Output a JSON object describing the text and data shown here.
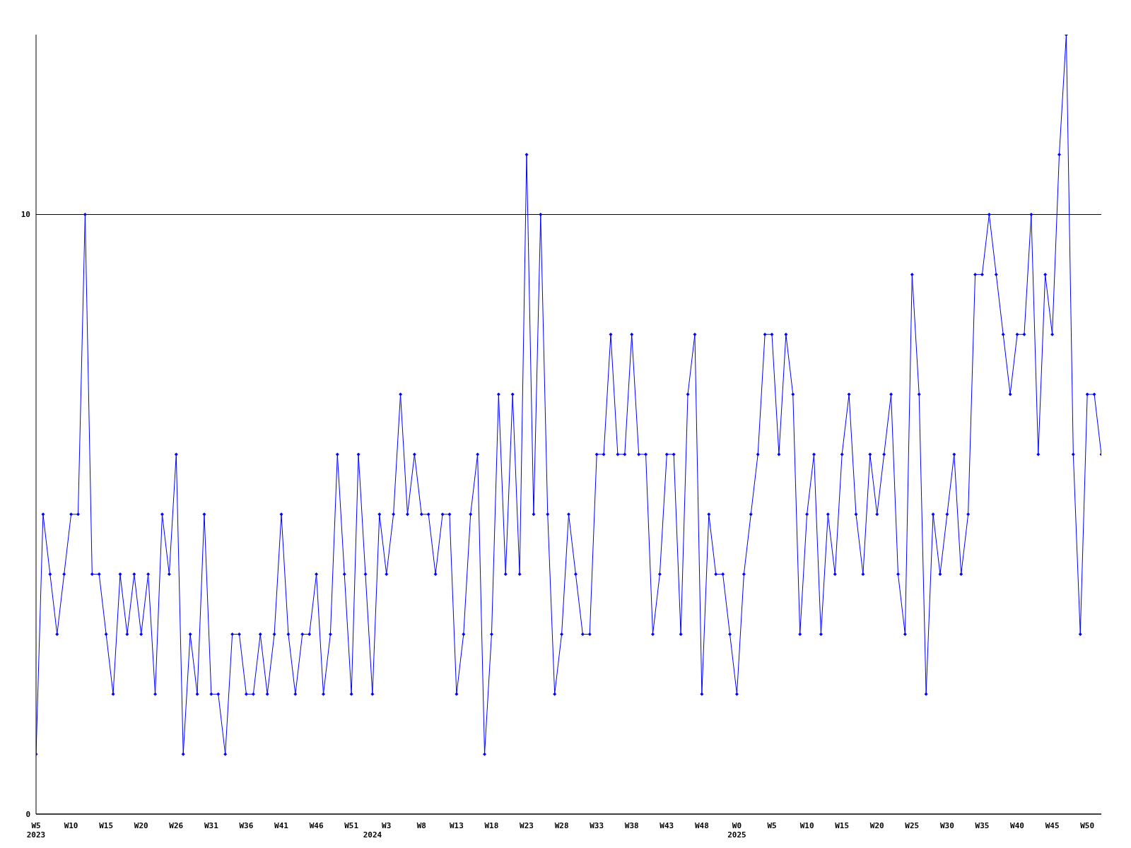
{
  "chart_data": {
    "type": "line",
    "categories": [
      "W5\n2023",
      null,
      null,
      null,
      null,
      "W10",
      null,
      null,
      null,
      null,
      "W15",
      null,
      null,
      null,
      null,
      "W20",
      null,
      null,
      null,
      null,
      "W26",
      null,
      null,
      null,
      null,
      "W31",
      null,
      null,
      null,
      null,
      "W36",
      null,
      null,
      null,
      null,
      "W41",
      null,
      null,
      null,
      null,
      "W46",
      null,
      null,
      null,
      null,
      "W51",
      null,
      null,
      "\n2024",
      null,
      "W3",
      null,
      null,
      null,
      null,
      "W8",
      null,
      null,
      null,
      null,
      "W13",
      null,
      null,
      null,
      null,
      "W18",
      null,
      null,
      null,
      null,
      "W23",
      null,
      null,
      null,
      null,
      "W28",
      null,
      null,
      null,
      null,
      "W33",
      null,
      null,
      null,
      null,
      "W38",
      null,
      null,
      null,
      null,
      "W43",
      null,
      null,
      null,
      null,
      "W48",
      null,
      null,
      null,
      null,
      "W0\n2025",
      null,
      null,
      null,
      null,
      "W5",
      null,
      null,
      null,
      null,
      "W10",
      null,
      null,
      null,
      null,
      "W15",
      null,
      null,
      null,
      null,
      "W20",
      null,
      null,
      null,
      null,
      "W25",
      null,
      null,
      null,
      null,
      "W30",
      null,
      null,
      null,
      null,
      "W35",
      null,
      null,
      null,
      null,
      "W40",
      null,
      null,
      null,
      null,
      "W45",
      null,
      null,
      null,
      null,
      "W50",
      null,
      null
    ],
    "values": [
      1,
      5,
      4,
      3,
      4,
      5,
      5,
      10,
      4,
      4,
      3,
      2,
      4,
      3,
      4,
      3,
      4,
      2,
      5,
      4,
      6,
      1,
      3,
      2,
      5,
      2,
      2,
      1,
      3,
      3,
      2,
      2,
      3,
      2,
      3,
      5,
      3,
      2,
      3,
      3,
      4,
      2,
      3,
      6,
      4,
      2,
      6,
      4,
      2,
      5,
      4,
      5,
      7,
      5,
      6,
      5,
      5,
      4,
      5,
      5,
      2,
      3,
      5,
      6,
      1,
      3,
      7,
      4,
      7,
      4,
      11,
      5,
      10,
      5,
      2,
      3,
      5,
      4,
      3,
      3,
      6,
      6,
      8,
      6,
      6,
      8,
      6,
      6,
      3,
      4,
      6,
      6,
      3,
      7,
      8,
      2,
      5,
      4,
      4,
      3,
      2,
      4,
      5,
      6,
      8,
      8,
      6,
      8,
      7,
      3,
      5,
      6,
      3,
      5,
      4,
      6,
      7,
      5,
      4,
      6,
      5,
      6,
      7,
      4,
      3,
      9,
      7,
      2,
      5,
      4,
      5,
      6,
      4,
      5,
      9,
      9,
      10,
      9,
      8,
      7,
      8,
      8,
      10,
      6,
      9,
      8,
      11,
      13,
      6,
      3,
      7,
      7,
      6
    ],
    "color": "#0000ff",
    "ylim": [
      0,
      13
    ],
    "yticks": [
      0,
      10
    ],
    "grid": "y",
    "marker": "diamond",
    "line_style": "solid"
  }
}
